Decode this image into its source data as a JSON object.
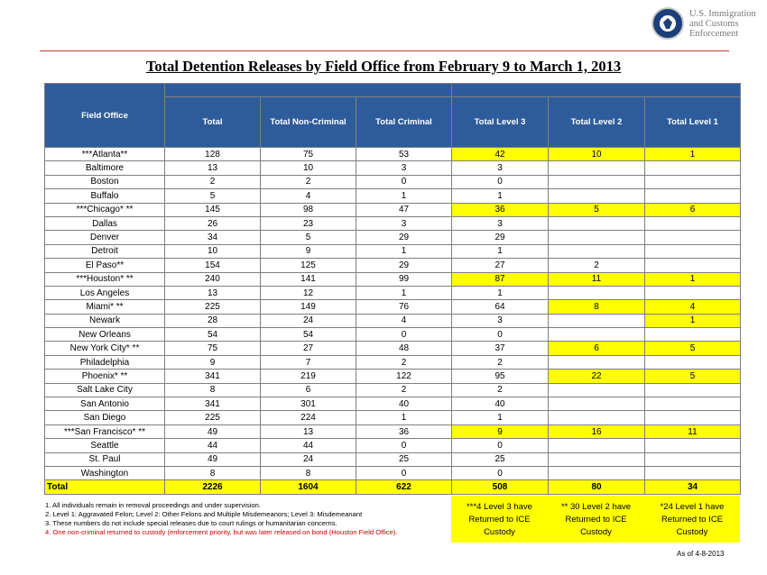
{
  "logo": {
    "line1": "U.S. Immigration",
    "line2": "and Customs",
    "line3": "Enforcement"
  },
  "title": "Total Detention Releases by Field Office from February 9 to March 1, 2013",
  "table": {
    "headers": [
      "Field Office",
      "Total",
      "Total Non-Criminal",
      "Total Criminal",
      "Total Level 3",
      "Total Level 2",
      "Total Level 1"
    ],
    "rows": [
      {
        "office": "***Atlanta**",
        "total": "128",
        "noncrim": "75",
        "crim": "53",
        "l3": "42",
        "l2": "10",
        "l1": "1",
        "hl": true
      },
      {
        "office": "Baltimore",
        "total": "13",
        "noncrim": "10",
        "crim": "3",
        "l3": "3",
        "l2": "",
        "l1": "",
        "hl": false
      },
      {
        "office": "Boston",
        "total": "2",
        "noncrim": "2",
        "crim": "0",
        "l3": "0",
        "l2": "",
        "l1": "",
        "hl": false
      },
      {
        "office": "Buffalo",
        "total": "5",
        "noncrim": "4",
        "crim": "1",
        "l3": "1",
        "l2": "",
        "l1": "",
        "hl": false
      },
      {
        "office": "***Chicago* **",
        "total": "145",
        "noncrim": "98",
        "crim": "47",
        "l3": "36",
        "l2": "5",
        "l1": "6",
        "hl": true
      },
      {
        "office": "Dallas",
        "total": "26",
        "noncrim": "23",
        "crim": "3",
        "l3": "3",
        "l2": "",
        "l1": "",
        "hl": false
      },
      {
        "office": "Denver",
        "total": "34",
        "noncrim": "5",
        "crim": "29",
        "l3": "29",
        "l2": "",
        "l1": "",
        "hl": false
      },
      {
        "office": "Detroit",
        "total": "10",
        "noncrim": "9",
        "crim": "1",
        "l3": "1",
        "l2": "",
        "l1": "",
        "hl": false
      },
      {
        "office": "El Paso**",
        "total": "154",
        "noncrim": "125",
        "crim": "29",
        "l3": "27",
        "l2": "2",
        "l1": "",
        "hl": false
      },
      {
        "office": "***Houston* **",
        "total": "240",
        "noncrim": "141",
        "crim": "99",
        "l3": "87",
        "l2": "11",
        "l1": "1",
        "hl": true
      },
      {
        "office": "Los Angeles",
        "total": "13",
        "noncrim": "12",
        "crim": "1",
        "l3": "1",
        "l2": "",
        "l1": "",
        "hl": false
      },
      {
        "office": "Miami* **",
        "total": "225",
        "noncrim": "149",
        "crim": "76",
        "l3": "64",
        "l2": "8",
        "l1": "4",
        "hl": false,
        "hl2": true,
        "hl1": true
      },
      {
        "office": "Newark",
        "total": "28",
        "noncrim": "24",
        "crim": "4",
        "l3": "3",
        "l2": "",
        "l1": "1",
        "hl": false,
        "hl1": true
      },
      {
        "office": "New Orleans",
        "total": "54",
        "noncrim": "54",
        "crim": "0",
        "l3": "0",
        "l2": "",
        "l1": "",
        "hl": false
      },
      {
        "office": "New York City*  **",
        "total": "75",
        "noncrim": "27",
        "crim": "48",
        "l3": "37",
        "l2": "6",
        "l1": "5",
        "hl": false,
        "hl2": true,
        "hl1": true
      },
      {
        "office": "Philadelphia",
        "total": "9",
        "noncrim": "7",
        "crim": "2",
        "l3": "2",
        "l2": "",
        "l1": "",
        "hl": false
      },
      {
        "office": "Phoenix* **",
        "total": "341",
        "noncrim": "219",
        "crim": "122",
        "l3": "95",
        "l2": "22",
        "l1": "5",
        "hl": false,
        "hl2": true,
        "hl1": true
      },
      {
        "office": "Salt Lake City",
        "total": "8",
        "noncrim": "6",
        "crim": "2",
        "l3": "2",
        "l2": "",
        "l1": "",
        "hl": false
      },
      {
        "office": "San Antonio",
        "total": "341",
        "noncrim": "301",
        "crim": "40",
        "l3": "40",
        "l2": "",
        "l1": "",
        "hl": false
      },
      {
        "office": "San Diego",
        "total": "225",
        "noncrim": "224",
        "crim": "1",
        "l3": "1",
        "l2": "",
        "l1": "",
        "hl": false
      },
      {
        "office": "***San Francisco* **",
        "total": "49",
        "noncrim": "13",
        "crim": "36",
        "l3": "9",
        "l2": "16",
        "l1": "11",
        "hl": true
      },
      {
        "office": "Seattle",
        "total": "44",
        "noncrim": "44",
        "crim": "0",
        "l3": "0",
        "l2": "",
        "l1": "",
        "hl": false
      },
      {
        "office": "St. Paul",
        "total": "49",
        "noncrim": "24",
        "crim": "25",
        "l3": "25",
        "l2": "",
        "l1": "",
        "hl": false
      },
      {
        "office": "Washington",
        "total": "8",
        "noncrim": "8",
        "crim": "0",
        "l3": "0",
        "l2": "",
        "l1": "",
        "hl": false
      }
    ],
    "total_row": {
      "label": "Total",
      "total": "2226",
      "noncrim": "1604",
      "crim": "622",
      "l3": "508",
      "l2": "80",
      "l1": "34"
    }
  },
  "notes": {
    "n1": "1. All individuals remain in removal proceedings and under supervision.",
    "n2": "2. Level 1: Aggravated Felon; Level 2: Other Felons and Multiple Misdemeanors; Level 3: Misdemeanant",
    "n3": "3. These numbers do not include special releases due to court rulings or humanitarian concerns.",
    "n4": "4. One non-criminal returned to custody (enforcement priority, but was later released on bond (Houston Field Office)."
  },
  "boxes": {
    "b3": {
      "line1": "***4 Level 3 have",
      "line2": "Returned to ICE",
      "line3": "Custody"
    },
    "b2": {
      "line1": "** 30 Level 2 have",
      "line2": "Returned to ICE",
      "line3": "Custody"
    },
    "b1": {
      "line1": "*24 Level 1 have",
      "line2": "Returned to ICE",
      "line3": "Custody"
    }
  },
  "as_of": "As of 4-8-2013",
  "colors": {
    "header_blue": "#2e5c9b",
    "highlight": "#ffff00",
    "rule_red": "#c0392b",
    "note_red": "#cc0000"
  }
}
